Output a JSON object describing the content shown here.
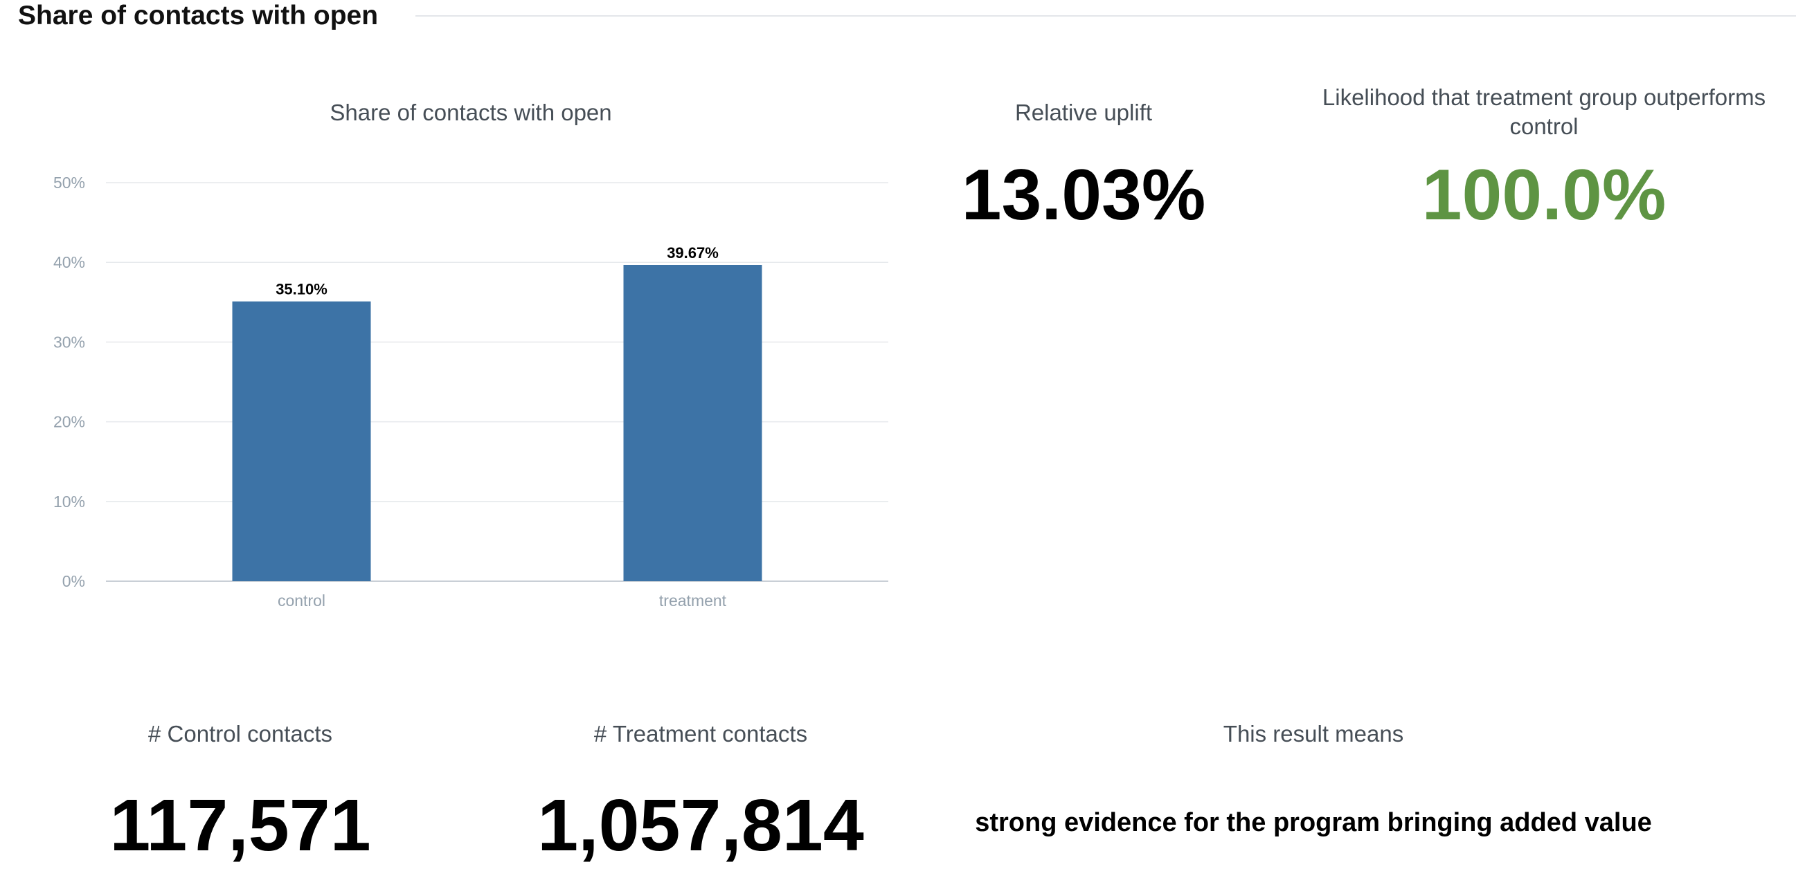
{
  "section": {
    "title": "Share of contacts with open"
  },
  "chart_data": {
    "type": "bar",
    "title": "Share of contacts with open",
    "categories": [
      "control",
      "treatment"
    ],
    "values": [
      35.1,
      39.67
    ],
    "value_labels": [
      "35.10%",
      "39.67%"
    ],
    "ylim": [
      0,
      50
    ],
    "yticks": [
      0,
      10,
      20,
      30,
      40,
      50
    ],
    "ytick_labels": [
      "0%",
      "10%",
      "20%",
      "30%",
      "40%",
      "50%"
    ],
    "xlabel": "",
    "ylabel": "",
    "grid": true,
    "bar_color": "#3d73a6"
  },
  "kpis": {
    "uplift": {
      "title": "Relative uplift",
      "value": "13.03%",
      "color": "#000000"
    },
    "likelihood": {
      "title": "Likelihood that treatment group outperforms control",
      "value": "100.0%",
      "color": "#5e9443"
    },
    "control_contacts": {
      "title": "# Control contacts",
      "value": "117,571"
    },
    "treatment_contacts": {
      "title": "# Treatment contacts",
      "value": "1,057,814"
    },
    "result": {
      "title": "This result means",
      "value": "strong evidence for the program bringing added value"
    }
  }
}
